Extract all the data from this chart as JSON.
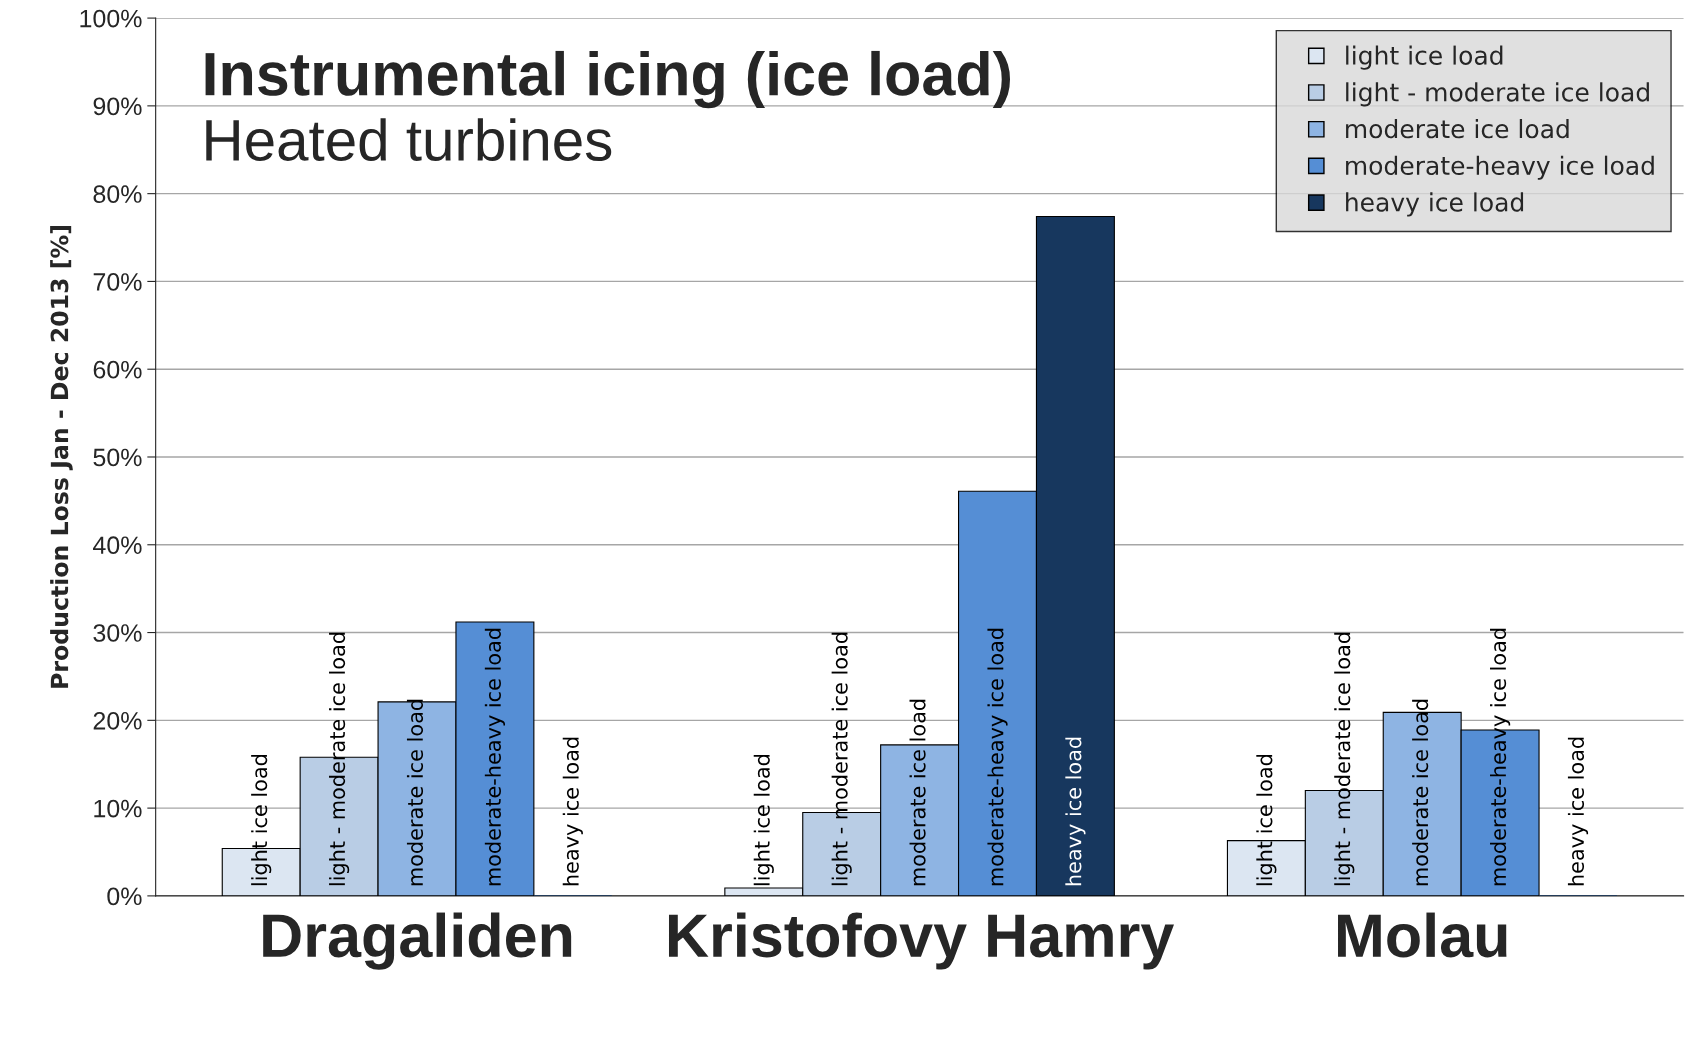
{
  "chart_data": {
    "type": "bar",
    "title": "Instrumental icing (ice load)",
    "subtitle": "Heated turbines",
    "ylabel": "Production Loss Jan - Dec 2013 [%]",
    "categories": [
      "Dragaliden",
      "Kristofovy Hamry",
      "Molau"
    ],
    "series": [
      {
        "name": "light ice load",
        "color": "#dce6f2",
        "values": [
          5.4,
          0.9,
          6.3
        ]
      },
      {
        "name": "light - moderate ice load",
        "color": "#b9cde5",
        "values": [
          15.8,
          9.5,
          12.0
        ]
      },
      {
        "name": "moderate ice load",
        "color": "#8eb4e3",
        "values": [
          22.1,
          17.2,
          20.9
        ]
      },
      {
        "name": "moderate-heavy ice load",
        "color": "#558ed5",
        "values": [
          31.2,
          46.1,
          18.9
        ]
      },
      {
        "name": "heavy ice load",
        "color": "#17375e",
        "values": [
          0,
          77.4,
          0
        ]
      }
    ],
    "ylim": [
      0,
      100
    ],
    "yticks": [
      {
        "value": 0,
        "label": "0%"
      },
      {
        "value": 10,
        "label": "10%"
      },
      {
        "value": 20,
        "label": "20%"
      },
      {
        "value": 30,
        "label": "30%"
      },
      {
        "value": 40,
        "label": "40%"
      },
      {
        "value": 50,
        "label": "50%"
      },
      {
        "value": 60,
        "label": "60%"
      },
      {
        "value": 70,
        "label": "70%"
      },
      {
        "value": 80,
        "label": "80%"
      },
      {
        "value": 90,
        "label": "90%"
      },
      {
        "value": 100,
        "label": "100%"
      }
    ],
    "grid": "y",
    "legend": "top right",
    "marker": "square"
  }
}
